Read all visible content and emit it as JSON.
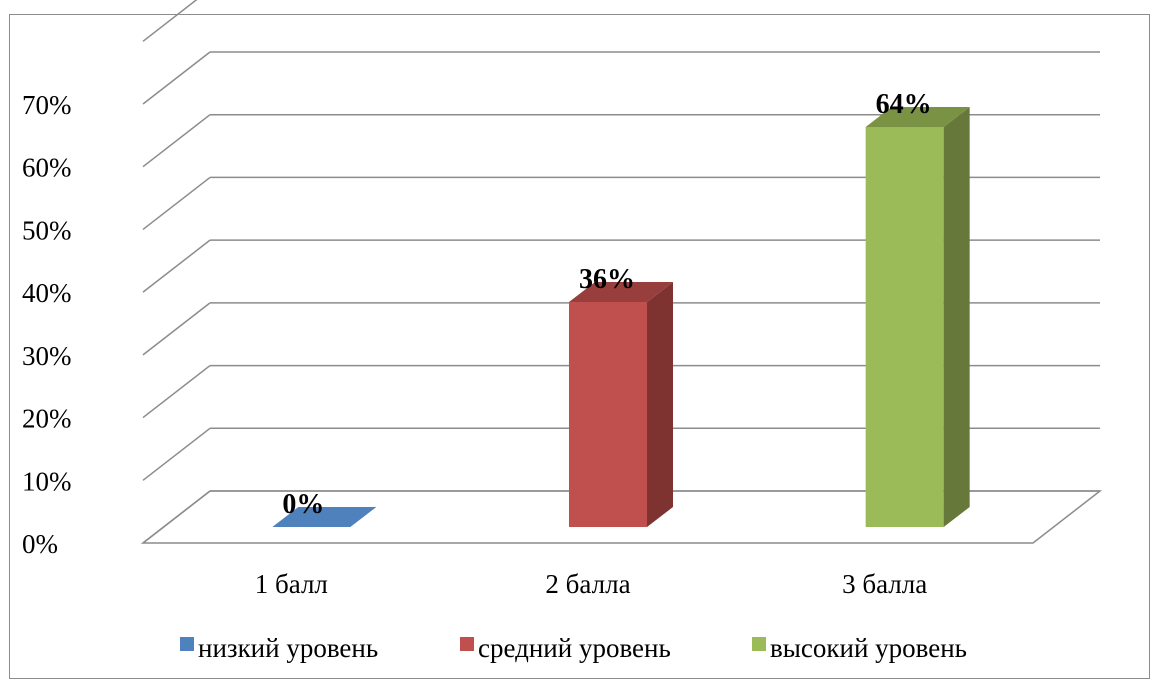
{
  "chart_data": {
    "type": "bar",
    "style": "3d-column",
    "categories": [
      "1 балл",
      "2 балла",
      "3 балла"
    ],
    "series": [
      {
        "name": "низкий уровень",
        "category": "1 балл",
        "value": 0,
        "label": "0%",
        "color": "#4f81bd",
        "side_color": "#385d8a",
        "top_color": "#3c6aa0"
      },
      {
        "name": "средний уровень",
        "category": "2 балла",
        "value": 36,
        "label": "36%",
        "color": "#c0504d",
        "side_color": "#7f3331",
        "top_color": "#983f3d"
      },
      {
        "name": "высокий уровень",
        "category": "3 балла",
        "value": 64,
        "label": "64%",
        "color": "#9bbb59",
        "side_color": "#66793a",
        "top_color": "#7a9243"
      }
    ],
    "y_ticks": [
      "0%",
      "10%",
      "20%",
      "30%",
      "40%",
      "50%",
      "60%",
      "70%"
    ],
    "ylim": [
      0,
      70
    ],
    "grid": true,
    "legend_position": "bottom",
    "title": "",
    "xlabel": "",
    "ylabel": ""
  }
}
